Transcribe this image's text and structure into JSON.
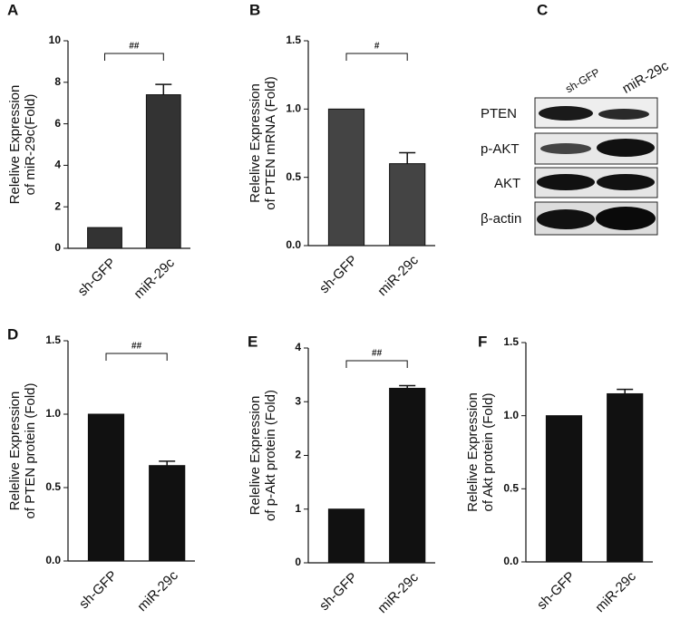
{
  "chart_data": [
    {
      "type": "bar",
      "panel": "A",
      "ylabel": [
        "Relelive Expression",
        "of miR-29c(Fold)"
      ],
      "categories": [
        "sh-GFP",
        "miR-29c"
      ],
      "values": [
        1,
        7.4
      ],
      "errors": [
        0,
        0.5
      ],
      "color": "#333333",
      "significance": "##",
      "ylim": [
        0,
        10
      ],
      "yticks": [
        0,
        2,
        4,
        6,
        8,
        10
      ]
    },
    {
      "type": "bar",
      "panel": "B",
      "ylabel": [
        "Relelive Expression",
        "of PTEN mRNA (Fold)"
      ],
      "categories": [
        "sh-GFP",
        "miR-29c"
      ],
      "values": [
        1.0,
        0.6
      ],
      "errors": [
        0,
        0.08
      ],
      "color": "#444444",
      "significance": "#",
      "ylim": [
        0,
        1.5
      ],
      "yticks": [
        {
          "value": 0,
          "label": "0.0"
        },
        {
          "value": 0.5,
          "label": "0.5"
        },
        {
          "value": 1,
          "label": "1.0"
        },
        {
          "value": 1.5,
          "label": "1.5"
        }
      ]
    },
    {
      "type": "bar",
      "panel": "D",
      "ylabel": [
        "Relelive Expression",
        "of PTEN protein (Fold)"
      ],
      "categories": [
        "sh-GFP",
        "miR-29c"
      ],
      "values": [
        1.0,
        0.65
      ],
      "errors": [
        0,
        0.03
      ],
      "color": "#111111",
      "significance": "##",
      "ylim": [
        0,
        1.5
      ],
      "yticks": [
        {
          "value": 0,
          "label": "0.0"
        },
        {
          "value": 0.5,
          "label": "0.5"
        },
        {
          "value": 1,
          "label": "1.0"
        },
        {
          "value": 1.5,
          "label": "1.5"
        }
      ]
    },
    {
      "type": "bar",
      "panel": "E",
      "ylabel": [
        "Relelive Expression",
        "of p-Akt protein (Fold)"
      ],
      "categories": [
        "sh-GFP",
        "miR-29c"
      ],
      "values": [
        1,
        3.25
      ],
      "errors": [
        0,
        0.05
      ],
      "color": "#111111",
      "significance": "##",
      "ylim": [
        0,
        4
      ],
      "yticks": [
        0,
        1,
        2,
        3,
        4
      ]
    },
    {
      "type": "bar",
      "panel": "F",
      "ylabel": [
        "Relelive Expression",
        "of Akt protein (Fold)"
      ],
      "categories": [
        "sh-GFP",
        "miR-29c"
      ],
      "values": [
        1.0,
        1.15
      ],
      "errors": [
        0,
        0.03
      ],
      "color": "#111111",
      "ylim": [
        0,
        1.5
      ],
      "yticks": [
        {
          "value": 0,
          "label": "0.0"
        },
        {
          "value": 0.5,
          "label": "0.5"
        },
        {
          "value": 1,
          "label": "1.0"
        },
        {
          "value": 1.5,
          "label": "1.5"
        }
      ]
    }
  ],
  "blot": {
    "panel": "C",
    "columns": [
      "sh-GFP",
      "miR-29c"
    ],
    "rows": [
      "PTEN",
      "p-AKT",
      "AKT",
      "β-actin"
    ]
  }
}
